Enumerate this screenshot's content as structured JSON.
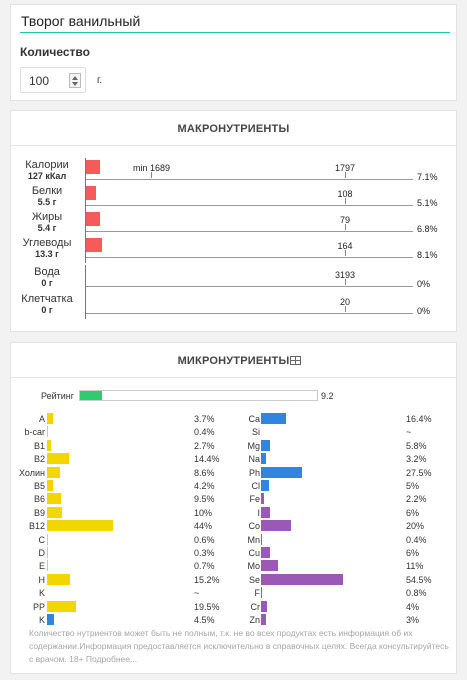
{
  "product": {
    "title": "Творог ванильный"
  },
  "quantity": {
    "label": "Количество",
    "value": "100",
    "unit": "г."
  },
  "macro": {
    "title": "МАКРОНУТРИЕНТЫ",
    "bar_color": "#f45b5b",
    "rows": [
      {
        "name": "Калории",
        "amount": "127 кКал",
        "bar_fraction": 0.071,
        "min_label": "min 1689",
        "norm_label": "1797",
        "percent": "7.1%"
      },
      {
        "name": "Белки",
        "amount": "5.5 г",
        "bar_fraction": 0.051,
        "norm_label": "108",
        "percent": "5.1%"
      },
      {
        "name": "Жиры",
        "amount": "5.4 г",
        "bar_fraction": 0.068,
        "norm_label": "79",
        "percent": "6.8%"
      },
      {
        "name": "Углеводы",
        "amount": "13.3 г",
        "bar_fraction": 0.081,
        "norm_label": "164",
        "percent": "8.1%"
      },
      {
        "name": "Вода",
        "amount": "0 г",
        "bar_fraction": 0,
        "norm_label": "3193",
        "percent": "0%"
      },
      {
        "name": "Клетчатка",
        "amount": "0 г",
        "bar_fraction": 0,
        "norm_label": "20",
        "percent": "0%"
      }
    ]
  },
  "micro": {
    "title": "МИКРОНУТРИЕНТЫ",
    "icon": "table-icon",
    "rating": {
      "label": "Рейтинг",
      "value": "9.2",
      "fraction": 0.092,
      "color": "#2ecc71"
    },
    "colors": {
      "vitamin": "#f2d600",
      "mineral": "#2e86de",
      "trace": "#9b59b6"
    },
    "vitamins": [
      {
        "name": "A",
        "pct": "3.7%",
        "value": 3.7,
        "color": "vitamin"
      },
      {
        "name": "b-car",
        "pct": "0.4%",
        "value": 0.4,
        "color": "vitamin"
      },
      {
        "name": "B1",
        "pct": "2.7%",
        "value": 2.7,
        "color": "vitamin"
      },
      {
        "name": "B2",
        "pct": "14.4%",
        "value": 14.4,
        "color": "vitamin"
      },
      {
        "name": "Холин",
        "pct": "8.6%",
        "value": 8.6,
        "color": "vitamin"
      },
      {
        "name": "B5",
        "pct": "4.2%",
        "value": 4.2,
        "color": "vitamin"
      },
      {
        "name": "B6",
        "pct": "9.5%",
        "value": 9.5,
        "color": "vitamin"
      },
      {
        "name": "B9",
        "pct": "10%",
        "value": 10,
        "color": "vitamin"
      },
      {
        "name": "B12",
        "pct": "44%",
        "value": 44,
        "color": "vitamin"
      },
      {
        "name": "C",
        "pct": "0.6%",
        "value": 0.6,
        "color": "vitamin"
      },
      {
        "name": "D",
        "pct": "0.3%",
        "value": 0.3,
        "color": "vitamin"
      },
      {
        "name": "E",
        "pct": "0.7%",
        "value": 0.7,
        "color": "vitamin"
      },
      {
        "name": "H",
        "pct": "15.2%",
        "value": 15.2,
        "color": "vitamin"
      },
      {
        "name": "K",
        "pct": "~",
        "value": 0,
        "color": "vitamin"
      },
      {
        "name": "PP",
        "pct": "19.5%",
        "value": 19.5,
        "color": "vitamin"
      },
      {
        "name": "K",
        "pct": "4.5%",
        "value": 4.5,
        "color": "mineral"
      }
    ],
    "minerals": [
      {
        "name": "Ca",
        "pct": "16.4%",
        "value": 16.4,
        "color": "mineral"
      },
      {
        "name": "Si",
        "pct": "~",
        "value": 0,
        "color": "mineral"
      },
      {
        "name": "Mg",
        "pct": "5.8%",
        "value": 5.8,
        "color": "mineral"
      },
      {
        "name": "Na",
        "pct": "3.2%",
        "value": 3.2,
        "color": "mineral"
      },
      {
        "name": "Ph",
        "pct": "27.5%",
        "value": 27.5,
        "color": "mineral"
      },
      {
        "name": "Cl",
        "pct": "5%",
        "value": 5,
        "color": "mineral"
      },
      {
        "name": "Fe",
        "pct": "2.2%",
        "value": 2.2,
        "color": "trace"
      },
      {
        "name": "I",
        "pct": "6%",
        "value": 6,
        "color": "trace"
      },
      {
        "name": "Co",
        "pct": "20%",
        "value": 20,
        "color": "trace"
      },
      {
        "name": "Mn",
        "pct": "0.4%",
        "value": 0.4,
        "color": "trace"
      },
      {
        "name": "Cu",
        "pct": "6%",
        "value": 6,
        "color": "trace"
      },
      {
        "name": "Mo",
        "pct": "11%",
        "value": 11,
        "color": "trace"
      },
      {
        "name": "Se",
        "pct": "54.5%",
        "value": 54.5,
        "color": "trace"
      },
      {
        "name": "F",
        "pct": "0.8%",
        "value": 0.8,
        "color": "trace"
      },
      {
        "name": "Cr",
        "pct": "4%",
        "value": 4,
        "color": "trace"
      },
      {
        "name": "Zn",
        "pct": "3%",
        "value": 3,
        "color": "trace"
      }
    ],
    "disclaimer": "Количество нутриентов может быть не полным, т.к. не во всех продуктах есть информация об их содержании.Информация предоставляется исключительно в справочных целях. Всегда консультируйтесь с врачом. 18+ Подробнее..."
  }
}
